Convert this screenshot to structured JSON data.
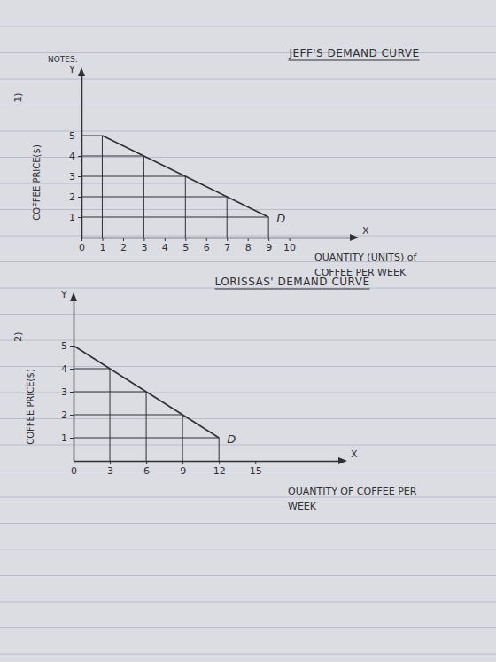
{
  "chart_data": [
    {
      "type": "line",
      "title": "JEFF'S DEMAND CURVE",
      "annotations": [
        "1)",
        "NOTES:"
      ],
      "x_label": "QUANTITY (UNITS) of COFFEE PER WEEK",
      "y_label": "COFFEE PRICE($)",
      "x_end_label": "X",
      "y_end_label": "Y",
      "x": [
        1,
        3,
        5,
        7,
        9
      ],
      "series": [
        {
          "name": "D",
          "color": "#2f2f35",
          "values": [
            5,
            4,
            3,
            2,
            1
          ]
        }
      ],
      "xlim": [
        0,
        13
      ],
      "ylim": [
        0,
        8
      ],
      "xticks": [
        0,
        1,
        2,
        3,
        4,
        5,
        6,
        7,
        8,
        9,
        10
      ],
      "yticks": [
        1,
        2,
        3,
        4,
        5
      ],
      "grid": false
    },
    {
      "type": "line",
      "title": "LORISSAS' DEMAND CURVE",
      "annotations": [
        "2)"
      ],
      "x_label": "QUANTITY OF COFFEE PER WEEK",
      "y_label": "COFFEE PRICE($)",
      "x_end_label": "X",
      "y_end_label": "Y",
      "x": [
        0,
        3,
        6,
        9,
        12
      ],
      "series": [
        {
          "name": "D",
          "color": "#2f2f35",
          "values": [
            5,
            4,
            3,
            2,
            1
          ]
        }
      ],
      "xlim": [
        0,
        22
      ],
      "ylim": [
        0,
        7
      ],
      "xticks": [
        0,
        3,
        6,
        9,
        12,
        15
      ],
      "yticks": [
        1,
        2,
        3,
        4,
        5
      ],
      "grid": false
    }
  ]
}
